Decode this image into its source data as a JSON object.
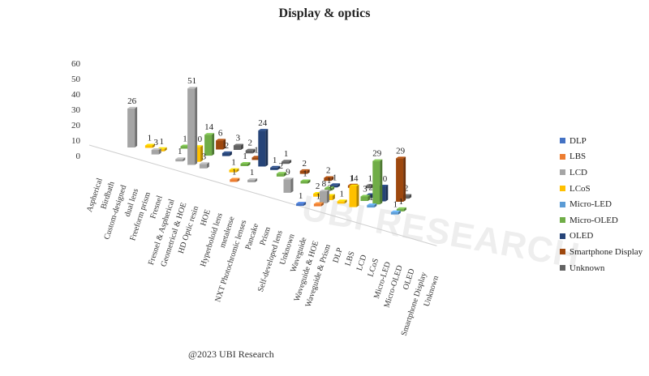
{
  "chart_data": {
    "type": "bar",
    "title": "Display & optics",
    "credit": "@2023 UBI Research",
    "watermark": "UBI RESEARCH",
    "y_ticks": [
      "0",
      "10",
      "20",
      "30",
      "40",
      "50",
      "60"
    ],
    "ylim": [
      0,
      60
    ],
    "categories": [
      "Aspherical",
      "Birdbath",
      "Custom-designed",
      "dual lens",
      "Freeform prism",
      "Fresnel",
      "Fresnel & Aspherical",
      "Geometrical & HOE",
      "HD Optic resin",
      "HOE",
      "Hyperboloid lens",
      "metalense",
      "NXT Photochromic lenses",
      "Pancake",
      "Prism",
      "Self-developed lens",
      "Unknown",
      "Waveguide",
      "Waveguide & HOE",
      "Waveguide & Prism",
      "DLP",
      "LBS",
      "LCD",
      "LCoS",
      "Micro-LED",
      "Micro-OLED",
      "OLED",
      "Smartphone Display",
      "Unknown"
    ],
    "series": [
      {
        "name": "DLP",
        "color": "#4472C4"
      },
      {
        "name": "LBS",
        "color": "#ED7D31"
      },
      {
        "name": "LCD",
        "color": "#A5A5A5"
      },
      {
        "name": "LCoS",
        "color": "#FFC000"
      },
      {
        "name": "Micro-LED",
        "color": "#5B9BD5"
      },
      {
        "name": "Micro-OLED",
        "color": "#70AD47"
      },
      {
        "name": "OLED",
        "color": "#264478"
      },
      {
        "name": "Smartphone Display",
        "color": "#9E480E"
      },
      {
        "name": "Unknown",
        "color": "#636363"
      }
    ],
    "points": [
      {
        "cat": 2,
        "s": 2,
        "v": 26
      },
      {
        "cat": 3,
        "s": 3,
        "v": 1
      },
      {
        "cat": 4,
        "s": 2,
        "v": 3
      },
      {
        "cat": 4,
        "s": 3,
        "v": 1
      },
      {
        "cat": 5,
        "s": 5,
        "v": 1
      },
      {
        "cat": 6,
        "s": 2,
        "v": 1
      },
      {
        "cat": 7,
        "s": 5,
        "v": 14
      },
      {
        "cat": 7,
        "s": 3,
        "v": 10
      },
      {
        "cat": 7,
        "s": 2,
        "v": 51
      },
      {
        "cat": 7,
        "s": 7,
        "v": 6
      },
      {
        "cat": 8,
        "s": 2,
        "v": 3
      },
      {
        "cat": 8,
        "s": 6,
        "v": 2
      },
      {
        "cat": 8,
        "s": 8,
        "v": 3
      },
      {
        "cat": 9,
        "s": 8,
        "v": 2
      },
      {
        "cat": 10,
        "s": 3,
        "v": 1
      },
      {
        "cat": 10,
        "s": 5,
        "v": 1
      },
      {
        "cat": 10,
        "s": 7,
        "v": 1
      },
      {
        "cat": 11,
        "s": 1,
        "v": 1
      },
      {
        "cat": 11,
        "s": 6,
        "v": 24
      },
      {
        "cat": 12,
        "s": 2,
        "v": 1
      },
      {
        "cat": 12,
        "s": 6,
        "v": 1
      },
      {
        "cat": 12,
        "s": 8,
        "v": 1
      },
      {
        "cat": 13,
        "s": 5,
        "v": 2
      },
      {
        "cat": 14,
        "s": 7,
        "v": 2
      },
      {
        "cat": 15,
        "s": 2,
        "v": 9
      },
      {
        "cat": 15,
        "s": 5,
        "v": 1
      },
      {
        "cat": 16,
        "s": 7,
        "v": 2
      },
      {
        "cat": 17,
        "s": 0,
        "v": 1
      },
      {
        "cat": 17,
        "s": 3,
        "v": 2
      },
      {
        "cat": 17,
        "s": 5,
        "v": 1
      },
      {
        "cat": 17,
        "s": 6,
        "v": 1
      },
      {
        "cat": 18,
        "s": 2,
        "v": 8
      },
      {
        "cat": 18,
        "s": 1,
        "v": 1
      },
      {
        "cat": 18,
        "s": 3,
        "v": 3
      },
      {
        "cat": 18,
        "s": 7,
        "v": 1
      },
      {
        "cat": 19,
        "s": 3,
        "v": 1
      },
      {
        "cat": 19,
        "s": 8,
        "v": 1
      },
      {
        "cat": 20,
        "s": 3,
        "v": 14
      },
      {
        "cat": 20,
        "s": 5,
        "v": 3
      },
      {
        "cat": 20,
        "s": 6,
        "v": 2
      },
      {
        "cat": 21,
        "s": 5,
        "v": 29
      },
      {
        "cat": 21,
        "s": 6,
        "v": 10
      },
      {
        "cat": 21,
        "s": 4,
        "v": 1
      },
      {
        "cat": 22,
        "s": 7,
        "v": 29
      },
      {
        "cat": 22,
        "s": 8,
        "v": 2
      },
      {
        "cat": 23,
        "s": 5,
        "v": 1
      },
      {
        "cat": 23,
        "s": 4,
        "v": 1
      }
    ]
  }
}
